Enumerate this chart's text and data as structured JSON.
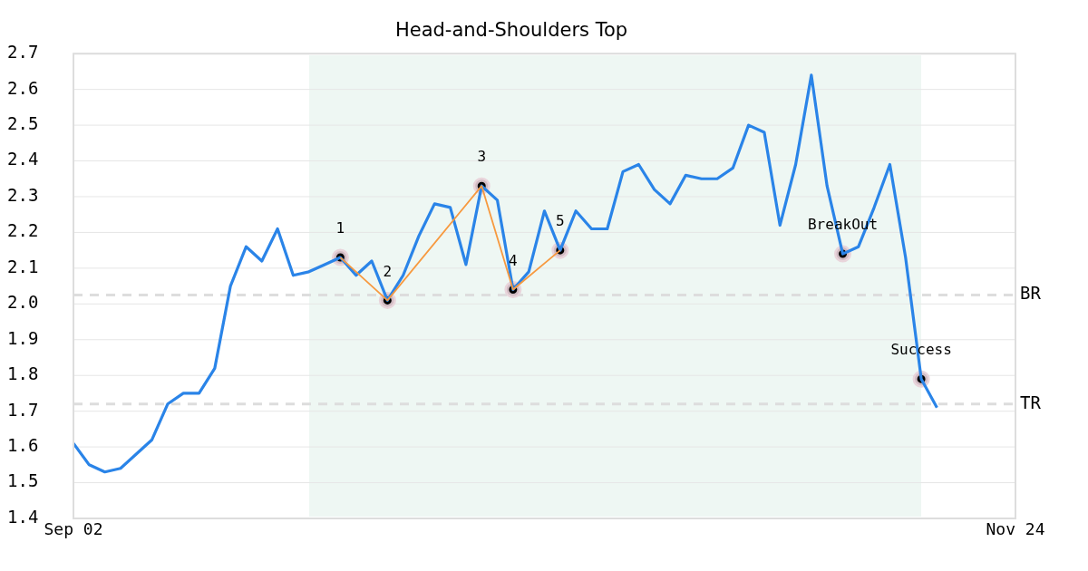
{
  "chart_data": {
    "type": "line",
    "title": "Head-and-Shoulders Top",
    "categories": [
      "Sep 02",
      null,
      null,
      null,
      null,
      null,
      null,
      null,
      null,
      null,
      null,
      null,
      null,
      null,
      null,
      null,
      null,
      null,
      null,
      null,
      null,
      null,
      null,
      null,
      null,
      null,
      null,
      null,
      null,
      null,
      null,
      null,
      null,
      null,
      null,
      null,
      null,
      null,
      null,
      null,
      null,
      null,
      null,
      null,
      null,
      null,
      null,
      null,
      null,
      null,
      null,
      null,
      null,
      null,
      null,
      null,
      null,
      null,
      null,
      null,
      "Nov 24"
    ],
    "ylim": [
      1.4,
      2.7
    ],
    "yticks": [
      1.4,
      1.5,
      1.6,
      1.7,
      1.8,
      1.9,
      {
        "value": 2,
        "label": "2.0"
      },
      2.1,
      2.2,
      2.3,
      2.4,
      2.5,
      2.6,
      2.7
    ],
    "grid": "y",
    "series": [
      {
        "color": "#2a84e8",
        "values": [
          1.61,
          1.55,
          1.53,
          1.54,
          1.58,
          1.62,
          1.72,
          1.75,
          1.75,
          1.82,
          2.05,
          2.16,
          2.12,
          2.21,
          2.08,
          2.09,
          2.11,
          2.13,
          2.08,
          2.12,
          2.01,
          2.08,
          2.19,
          2.28,
          2.27,
          2.11,
          2.33,
          2.29,
          2.04,
          2.09,
          2.26,
          2.15,
          2.26,
          2.21,
          2.21,
          2.37,
          2.39,
          2.32,
          2.28,
          2.36,
          2.35,
          2.35,
          2.38,
          2.5,
          2.48,
          2.22,
          2.39,
          2.64,
          2.33,
          2.14,
          2.16,
          2.27,
          2.39,
          2.13,
          1.79,
          1.71,
          null,
          null,
          null,
          null,
          null
        ]
      },
      {
        "color": "#f7993f",
        "values": [
          null,
          null,
          null,
          null,
          null,
          null,
          null,
          null,
          null,
          null,
          null,
          null,
          null,
          null,
          null,
          null,
          null,
          2.13,
          null,
          null,
          2.01,
          null,
          null,
          null,
          null,
          null,
          2.33,
          null,
          2.04,
          null,
          null,
          2.15,
          null,
          null,
          null,
          null,
          null,
          null,
          null,
          null,
          null,
          null,
          null,
          null,
          null,
          null,
          null,
          null,
          null,
          null,
          null,
          null,
          null,
          null,
          null,
          null,
          null,
          null,
          null,
          null,
          null
        ]
      },
      {
        "type": "scatter",
        "name": "1",
        "color": "#000000",
        "marker": "circle",
        "values": [
          null,
          null,
          null,
          null,
          null,
          null,
          null,
          null,
          null,
          null,
          null,
          null,
          null,
          null,
          null,
          null,
          null,
          2.13,
          null,
          null,
          null,
          null,
          null,
          null,
          null,
          null,
          null,
          null,
          null,
          null,
          null,
          null,
          null,
          null,
          null,
          null,
          null,
          null,
          null,
          null,
          null,
          null,
          null,
          null,
          null,
          null,
          null,
          null,
          null,
          null,
          null,
          null,
          null,
          null,
          null,
          null,
          null,
          null,
          null,
          null,
          null
        ]
      },
      {
        "type": "scatter",
        "name": "2",
        "color": "#000000",
        "marker": "circle",
        "values": [
          null,
          null,
          null,
          null,
          null,
          null,
          null,
          null,
          null,
          null,
          null,
          null,
          null,
          null,
          null,
          null,
          null,
          null,
          null,
          null,
          2.01,
          null,
          null,
          null,
          null,
          null,
          null,
          null,
          null,
          null,
          null,
          null,
          null,
          null,
          null,
          null,
          null,
          null,
          null,
          null,
          null,
          null,
          null,
          null,
          null,
          null,
          null,
          null,
          null,
          null,
          null,
          null,
          null,
          null,
          null,
          null,
          null,
          null,
          null,
          null,
          null
        ]
      },
      {
        "type": "scatter",
        "name": "3",
        "color": "#000000",
        "marker": "circle",
        "values": [
          null,
          null,
          null,
          null,
          null,
          null,
          null,
          null,
          null,
          null,
          null,
          null,
          null,
          null,
          null,
          null,
          null,
          null,
          null,
          null,
          null,
          null,
          null,
          null,
          null,
          null,
          2.33,
          null,
          null,
          null,
          null,
          null,
          null,
          null,
          null,
          null,
          null,
          null,
          null,
          null,
          null,
          null,
          null,
          null,
          null,
          null,
          null,
          null,
          null,
          null,
          null,
          null,
          null,
          null,
          null,
          null,
          null,
          null,
          null,
          null,
          null
        ]
      },
      {
        "type": "scatter",
        "name": "4",
        "color": "#000000",
        "marker": "circle",
        "values": [
          null,
          null,
          null,
          null,
          null,
          null,
          null,
          null,
          null,
          null,
          null,
          null,
          null,
          null,
          null,
          null,
          null,
          null,
          null,
          null,
          null,
          null,
          null,
          null,
          null,
          null,
          null,
          null,
          2.04,
          null,
          null,
          null,
          null,
          null,
          null,
          null,
          null,
          null,
          null,
          null,
          null,
          null,
          null,
          null,
          null,
          null,
          null,
          null,
          null,
          null,
          null,
          null,
          null,
          null,
          null,
          null,
          null,
          null,
          null,
          null,
          null
        ]
      },
      {
        "type": "scatter",
        "name": "5",
        "color": "#000000",
        "marker": "circle",
        "values": [
          null,
          null,
          null,
          null,
          null,
          null,
          null,
          null,
          null,
          null,
          null,
          null,
          null,
          null,
          null,
          null,
          null,
          null,
          null,
          null,
          null,
          null,
          null,
          null,
          null,
          null,
          null,
          null,
          null,
          null,
          null,
          2.15,
          null,
          null,
          null,
          null,
          null,
          null,
          null,
          null,
          null,
          null,
          null,
          null,
          null,
          null,
          null,
          null,
          null,
          null,
          null,
          null,
          null,
          null,
          null,
          null,
          null,
          null,
          null,
          null,
          null
        ]
      },
      {
        "type": "scatter",
        "name": "BreakOut",
        "color": "#000000",
        "marker": "circle",
        "values": [
          null,
          null,
          null,
          null,
          null,
          null,
          null,
          null,
          null,
          null,
          null,
          null,
          null,
          null,
          null,
          null,
          null,
          null,
          null,
          null,
          null,
          null,
          null,
          null,
          null,
          null,
          null,
          null,
          null,
          null,
          null,
          null,
          null,
          null,
          null,
          null,
          null,
          null,
          null,
          null,
          null,
          null,
          null,
          null,
          null,
          null,
          null,
          null,
          null,
          2.14,
          null,
          null,
          null,
          null,
          null,
          null,
          null,
          null,
          null,
          null,
          null
        ]
      },
      {
        "type": "scatter",
        "name": "Success",
        "color": "#000000",
        "marker": "circle",
        "values": [
          null,
          null,
          null,
          null,
          null,
          null,
          null,
          null,
          null,
          null,
          null,
          null,
          null,
          null,
          null,
          null,
          null,
          null,
          null,
          null,
          null,
          null,
          null,
          null,
          null,
          null,
          null,
          null,
          null,
          null,
          null,
          null,
          null,
          null,
          null,
          null,
          null,
          null,
          null,
          null,
          null,
          null,
          null,
          null,
          null,
          null,
          null,
          null,
          null,
          null,
          null,
          null,
          null,
          null,
          1.79,
          null,
          null,
          null,
          null,
          null,
          null
        ]
      }
    ],
    "ref_lines": [
      {
        "axis": "y",
        "value": 2.025,
        "label": "BR",
        "color": "#dddddd",
        "line_style": "dashed"
      },
      {
        "axis": "y",
        "value": 1.72,
        "label": "TR",
        "color": "#dddddd",
        "line_style": "dashed"
      }
    ]
  }
}
